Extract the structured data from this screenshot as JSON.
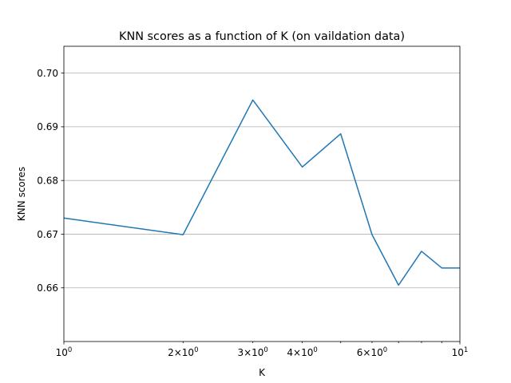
{
  "chart_data": {
    "type": "line",
    "title": "KNN scores as a function of K (on vaildation data)",
    "xlabel": "K",
    "ylabel": "KNN scores",
    "xscale": "log",
    "xlim": [
      1,
      10
    ],
    "ylim": [
      0.65,
      0.705
    ],
    "grid": "y-major",
    "x": [
      1,
      2,
      3,
      4,
      5,
      6,
      7,
      8,
      9,
      10
    ],
    "values": [
      0.673,
      0.6699,
      0.695,
      0.6825,
      0.6887,
      0.6699,
      0.6605,
      0.6668,
      0.6637,
      0.6637
    ],
    "yticks": [
      {
        "value": 0.66,
        "label": "0.66"
      },
      {
        "value": 0.67,
        "label": "0.67"
      },
      {
        "value": 0.68,
        "label": "0.68"
      },
      {
        "value": 0.69,
        "label": "0.69"
      },
      {
        "value": 0.7,
        "label": "0.70"
      }
    ],
    "xticks_major": [
      {
        "value": 1,
        "base": "10",
        "exp": "0"
      },
      {
        "value": 10,
        "base": "10",
        "exp": "1"
      }
    ],
    "xticks_minor": [
      {
        "value": 2,
        "coef": "2",
        "base": "10",
        "exp": "0"
      },
      {
        "value": 3,
        "coef": "3",
        "base": "10",
        "exp": "0"
      },
      {
        "value": 4,
        "coef": "4",
        "base": "10",
        "exp": "0"
      },
      {
        "value": 6,
        "coef": "6",
        "base": "10",
        "exp": "0"
      }
    ],
    "xticks_minor_unlabeled": [
      5,
      7,
      8,
      9
    ]
  },
  "colors": {
    "series": "#1f77b4",
    "grid": "#b0b0b0"
  }
}
